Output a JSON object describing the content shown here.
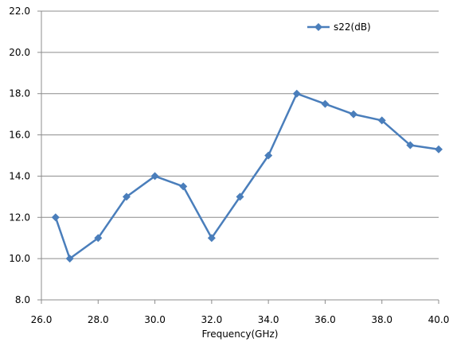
{
  "chart_data": {
    "type": "line",
    "title": "",
    "xlabel": "Frequency(GHz)",
    "ylabel": "",
    "xlim": [
      26.0,
      40.0
    ],
    "ylim": [
      8.0,
      22.0
    ],
    "x_ticks": [
      "26.0",
      "28.0",
      "30.0",
      "32.0",
      "34.0",
      "36.0",
      "38.0",
      "40.0"
    ],
    "y_ticks": [
      "8.0",
      "10.0",
      "12.0",
      "14.0",
      "16.0",
      "18.0",
      "20.0",
      "22.0"
    ],
    "grid": "horizontal",
    "legend_position": "top-right",
    "series": [
      {
        "name": "s22(dB)",
        "color": "#4a7ebb",
        "marker": "diamond",
        "x": [
          26.5,
          27.0,
          28.0,
          29.0,
          30.0,
          31.0,
          32.0,
          33.0,
          34.0,
          35.0,
          36.0,
          37.0,
          38.0,
          39.0,
          40.0
        ],
        "y": [
          12.0,
          10.0,
          11.0,
          13.0,
          14.0,
          13.5,
          11.0,
          13.0,
          15.0,
          18.0,
          17.5,
          17.0,
          16.7,
          15.5,
          15.3
        ]
      }
    ]
  }
}
